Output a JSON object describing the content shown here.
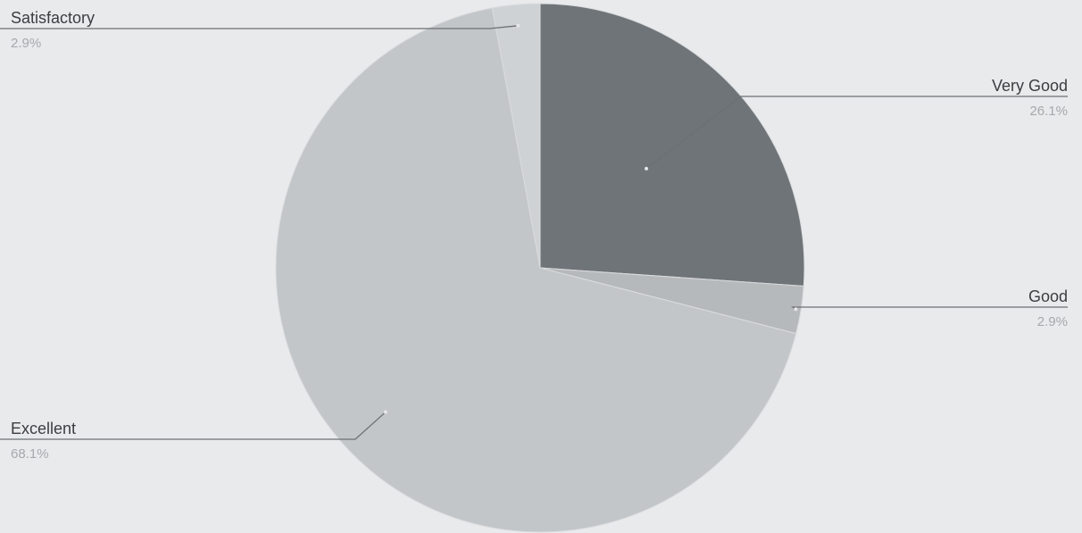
{
  "chart_data": {
    "type": "pie",
    "slices": [
      {
        "label": "Very Good",
        "value": 26.1,
        "value_label": "26.1%",
        "color": "#6f7479"
      },
      {
        "label": "Good",
        "value": 2.9,
        "value_label": "2.9%",
        "color": "#b6b9bc"
      },
      {
        "label": "Excellent",
        "value": 68.1,
        "value_label": "68.1%",
        "color": "#c3c6c9"
      },
      {
        "label": "Satisfactory",
        "value": 2.9,
        "value_label": "2.9%",
        "color": "#cfd2d5"
      }
    ],
    "start_angle_deg": 0,
    "direction": "clockwise",
    "legend": "none",
    "labels": "outside with leader lines"
  }
}
